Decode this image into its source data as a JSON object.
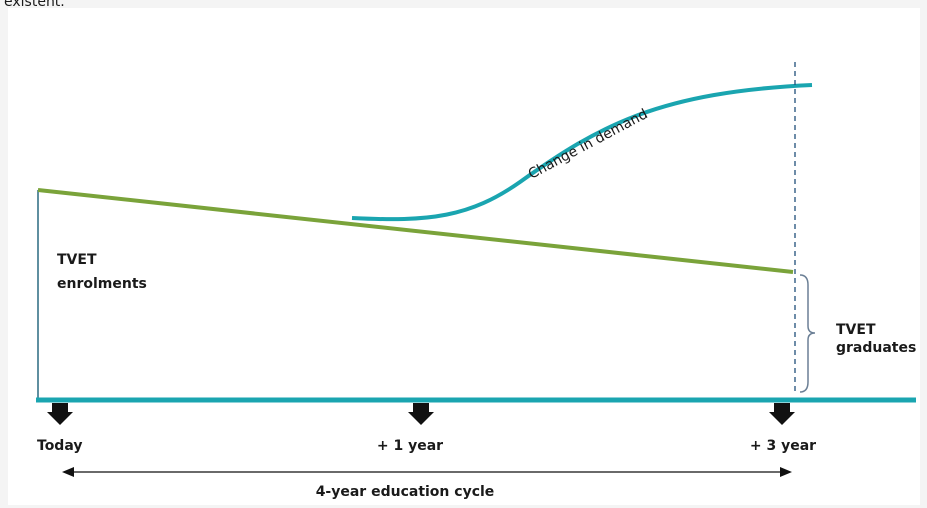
{
  "header_fragment": "existent.",
  "curve_label": "Change in demand",
  "left_label": [
    "TVET",
    "enrolments"
  ],
  "right_label": [
    "TVET",
    "graduates"
  ],
  "timeline": [
    "Today",
    "+ 1 year",
    "+ 3 year"
  ],
  "cycle_label": "4-year education cycle"
}
